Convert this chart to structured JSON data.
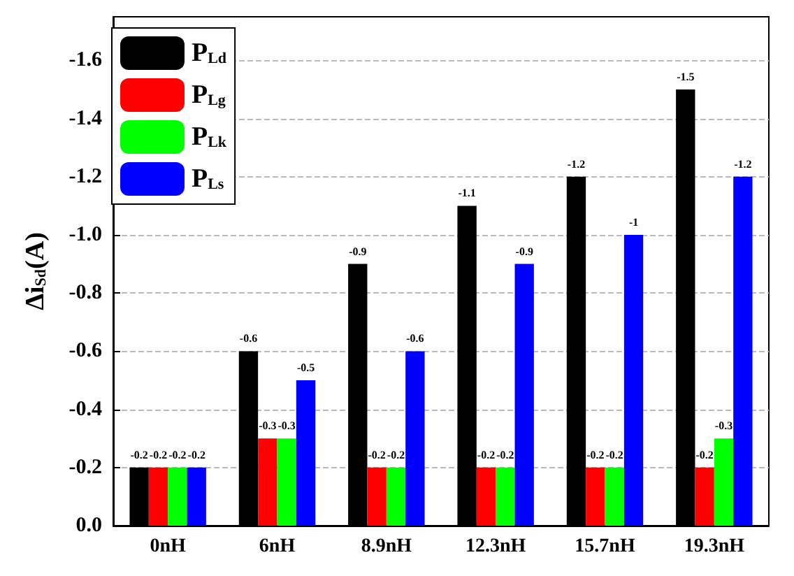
{
  "chart_data": {
    "type": "bar",
    "ylabel": "Δi$_{Sd}$(A)",
    "categories": [
      "0nH",
      "6nH",
      "8.9nH",
      "12.3nH",
      "15.7nH",
      "19.3nH"
    ],
    "series": [
      {
        "name": "P$_{Ld}$",
        "color": "#000000",
        "values": [
          -0.2,
          -0.6,
          -0.9,
          -1.1,
          -1.2,
          -1.5
        ]
      },
      {
        "name": "P$_{Lg}$",
        "color": "#ff0000",
        "values": [
          -0.2,
          -0.3,
          -0.2,
          -0.2,
          -0.2,
          -0.2
        ]
      },
      {
        "name": "P$_{Lk}$",
        "color": "#00ff00",
        "values": [
          -0.2,
          -0.3,
          -0.2,
          -0.2,
          -0.2,
          -0.3
        ]
      },
      {
        "name": "P$_{Ls}$",
        "color": "#0000ff",
        "values": [
          -0.2,
          -0.5,
          -0.6,
          -0.9,
          -1,
          -1.2
        ]
      }
    ],
    "ylim": [
      0,
      -1.75
    ],
    "yticks": [
      {
        "value": 0,
        "label": "0.0"
      },
      -0.2,
      -0.4,
      -0.6,
      -0.8,
      {
        "value": -1,
        "label": "-1.0"
      },
      -1.2,
      -1.4,
      -1.6
    ],
    "grid": "y",
    "legend": "top left",
    "data_labels": true
  }
}
